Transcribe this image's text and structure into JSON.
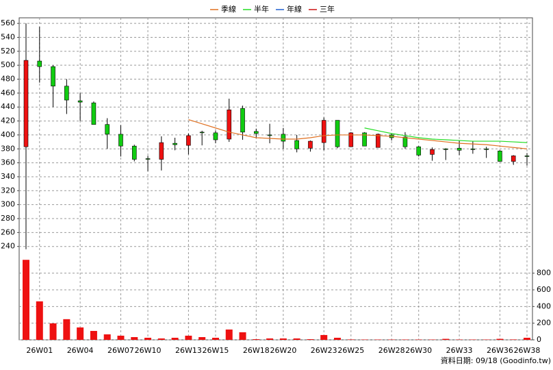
{
  "chart_data": {
    "type": "candlestick",
    "categories": [
      null,
      "26W01",
      null,
      null,
      "26W04",
      null,
      null,
      "26W07",
      null,
      "26W10",
      null,
      null,
      "26W13",
      null,
      "26W15",
      null,
      null,
      "26W18",
      null,
      "26W20",
      null,
      null,
      "26W23",
      null,
      "26W25",
      null,
      null,
      "26W28",
      null,
      "26W30",
      null,
      null,
      "26W33",
      null,
      null,
      "26W36",
      null,
      "26W38"
    ],
    "open": [
      383,
      506,
      498,
      470,
      449,
      446,
      415,
      401,
      384,
      366,
      365,
      388,
      385,
      404,
      403,
      394,
      438,
      405,
      400,
      401,
      392,
      381,
      389,
      421,
      383,
      403,
      382,
      400,
      397,
      383,
      372,
      380,
      381,
      380,
      380,
      377,
      362,
      370
    ],
    "high": [
      560,
      555,
      500,
      480,
      460,
      448,
      424,
      414,
      386,
      370,
      398,
      396,
      402,
      406,
      406,
      452,
      442,
      409,
      416,
      410,
      400,
      392,
      425,
      421,
      404,
      404,
      402,
      402,
      404,
      384,
      382,
      381,
      392,
      391,
      383,
      378,
      371,
      374
    ],
    "low": [
      236,
      475,
      440,
      430,
      420,
      415,
      380,
      369,
      362,
      348,
      349,
      378,
      372,
      385,
      388,
      390,
      393,
      396,
      388,
      380,
      375,
      376,
      378,
      381,
      383,
      384,
      382,
      392,
      380,
      369,
      363,
      364,
      371,
      373,
      367,
      362,
      357,
      356
    ],
    "close": [
      507,
      498,
      470,
      450,
      447,
      415,
      401,
      384,
      365,
      365,
      389,
      386,
      399,
      403,
      393,
      436,
      404,
      402,
      399,
      391,
      380,
      391,
      421,
      383,
      403,
      384,
      401,
      396,
      383,
      371,
      379,
      379,
      378,
      379,
      379,
      362,
      370,
      369
    ],
    "up_color": "#ee1111",
    "down_color": "#11cc11",
    "ylim": [
      222,
      568
    ],
    "yticks": [
      240,
      260,
      280,
      300,
      320,
      340,
      360,
      380,
      400,
      420,
      440,
      460,
      480,
      500,
      520,
      540,
      560
    ],
    "grid": true,
    "legend": "top",
    "series": [
      {
        "name": "季線",
        "color": "#e07020",
        "values": [
          null,
          null,
          null,
          null,
          null,
          null,
          null,
          null,
          null,
          null,
          null,
          null,
          422,
          416,
          410,
          404,
          400,
          396,
          395,
          394,
          394,
          396,
          399,
          400,
          400,
          400,
          399,
          398,
          396,
          394,
          392,
          390,
          388,
          387,
          386,
          384,
          382,
          380
        ]
      },
      {
        "name": "半年",
        "color": "#22dd22",
        "values": [
          null,
          null,
          null,
          null,
          null,
          null,
          null,
          null,
          null,
          null,
          null,
          null,
          null,
          null,
          null,
          null,
          null,
          null,
          null,
          null,
          null,
          null,
          null,
          null,
          null,
          410,
          406,
          402,
          399,
          396,
          394,
          393,
          392,
          391,
          391,
          391,
          390,
          389
        ]
      },
      {
        "name": "年線",
        "color": "#1f5fd0",
        "values": [
          null,
          null,
          null,
          null,
          null,
          null,
          null,
          null,
          null,
          null,
          null,
          null,
          null,
          null,
          null,
          null,
          null,
          null,
          null,
          null,
          null,
          null,
          null,
          null,
          null,
          null,
          null,
          null,
          null,
          null,
          null,
          null,
          null,
          null,
          null,
          null,
          null,
          null
        ]
      },
      {
        "name": "三年",
        "color": "#cc1111",
        "values": [
          null,
          null,
          null,
          null,
          null,
          null,
          null,
          null,
          null,
          null,
          null,
          null,
          null,
          null,
          null,
          null,
          null,
          null,
          null,
          null,
          null,
          null,
          null,
          null,
          null,
          null,
          null,
          null,
          null,
          null,
          null,
          null,
          null,
          null,
          null,
          null,
          null,
          null
        ]
      }
    ],
    "volume": {
      "color": "#ee1111",
      "values": [
        960,
        462,
        198,
        248,
        149,
        107,
        66,
        50,
        33,
        25,
        17,
        25,
        50,
        33,
        25,
        124,
        91,
        8,
        17,
        17,
        17,
        8,
        58,
        25,
        5,
        4,
        4,
        4,
        4,
        4,
        4,
        12,
        4,
        4,
        4,
        12,
        5,
        25
      ],
      "ylim": [
        0,
        970
      ],
      "yticks": [
        0,
        200,
        400,
        600,
        800
      ]
    },
    "note": "資料日期: 09/18 (Goodinfo.tw)"
  }
}
